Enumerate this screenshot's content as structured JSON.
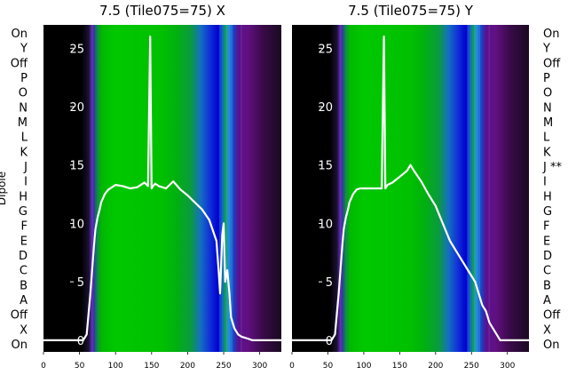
{
  "chart_data": [
    {
      "type": "heatmap",
      "title": "7.5 (Tile075=75) X",
      "ylabel": "Dipole",
      "xlim": [
        0,
        330
      ],
      "x_ticks": [
        0,
        50,
        100,
        150,
        200,
        250,
        300
      ],
      "row_labels": [
        "On",
        "X",
        "Off",
        "A",
        "B",
        "C",
        "D",
        "E",
        "F",
        "G",
        "H",
        "I",
        "J",
        "K",
        "L",
        "M",
        "N",
        "O",
        "P",
        "Off",
        "Y",
        "On"
      ],
      "inner_ylim": [
        -1,
        27
      ],
      "inner_ticks": [
        0,
        5,
        10,
        15,
        20,
        25
      ],
      "line": {
        "x": [
          0,
          55,
          60,
          65,
          70,
          72,
          75,
          78,
          80,
          85,
          90,
          95,
          100,
          110,
          120,
          130,
          140,
          145,
          148,
          150,
          152,
          155,
          160,
          170,
          180,
          190,
          200,
          210,
          220,
          230,
          240,
          243,
          245,
          248,
          250,
          252,
          255,
          258,
          260,
          265,
          270,
          275,
          280,
          285,
          290,
          295,
          300,
          310,
          320,
          330
        ],
        "y": [
          0,
          0,
          0.5,
          4,
          8,
          9.5,
          10.5,
          11.2,
          11.8,
          12.5,
          12.9,
          13.1,
          13.3,
          13.2,
          13,
          13.1,
          13.5,
          13.2,
          26,
          13,
          13.2,
          13.4,
          13.2,
          13,
          13.6,
          12.9,
          12.4,
          11.8,
          11.2,
          10.3,
          8.5,
          6,
          4,
          9,
          10,
          5,
          6,
          4,
          2,
          1,
          0.5,
          0.3,
          0.2,
          0.1,
          0,
          0,
          0,
          0,
          0,
          0
        ]
      }
    },
    {
      "type": "heatmap",
      "title": "7.5 (Tile075=75) Y",
      "xlim": [
        0,
        330
      ],
      "x_ticks": [
        0,
        50,
        100,
        150,
        200,
        250,
        300
      ],
      "row_labels": [
        "On",
        "X",
        "Off",
        "A",
        "B",
        "C",
        "D",
        "E",
        "F",
        "G",
        "H",
        "I",
        "J **",
        "K",
        "L",
        "M",
        "N",
        "O",
        "P",
        "Off",
        "Y",
        "On"
      ],
      "inner_ylim": [
        -1,
        27
      ],
      "inner_ticks": [
        0,
        5,
        10,
        15,
        20,
        25
      ],
      "line": {
        "x": [
          0,
          55,
          60,
          65,
          70,
          72,
          75,
          78,
          80,
          85,
          90,
          95,
          100,
          110,
          120,
          125,
          128,
          130,
          133,
          140,
          150,
          160,
          165,
          170,
          180,
          190,
          200,
          210,
          220,
          230,
          240,
          245,
          250,
          255,
          260,
          265,
          270,
          275,
          280,
          285,
          290,
          300,
          310,
          320,
          330
        ],
        "y": [
          0,
          0,
          0.5,
          4,
          8,
          9.5,
          10.5,
          11.2,
          11.8,
          12.5,
          12.9,
          13,
          13,
          13,
          13,
          13,
          26,
          13,
          13.3,
          13.5,
          14,
          14.5,
          15,
          14.5,
          13.6,
          12.5,
          11.5,
          10,
          8.5,
          7.5,
          6.5,
          6,
          5.5,
          5,
          4,
          3,
          2.5,
          1.5,
          1,
          0.5,
          0,
          0,
          0,
          0,
          0
        ]
      }
    }
  ]
}
